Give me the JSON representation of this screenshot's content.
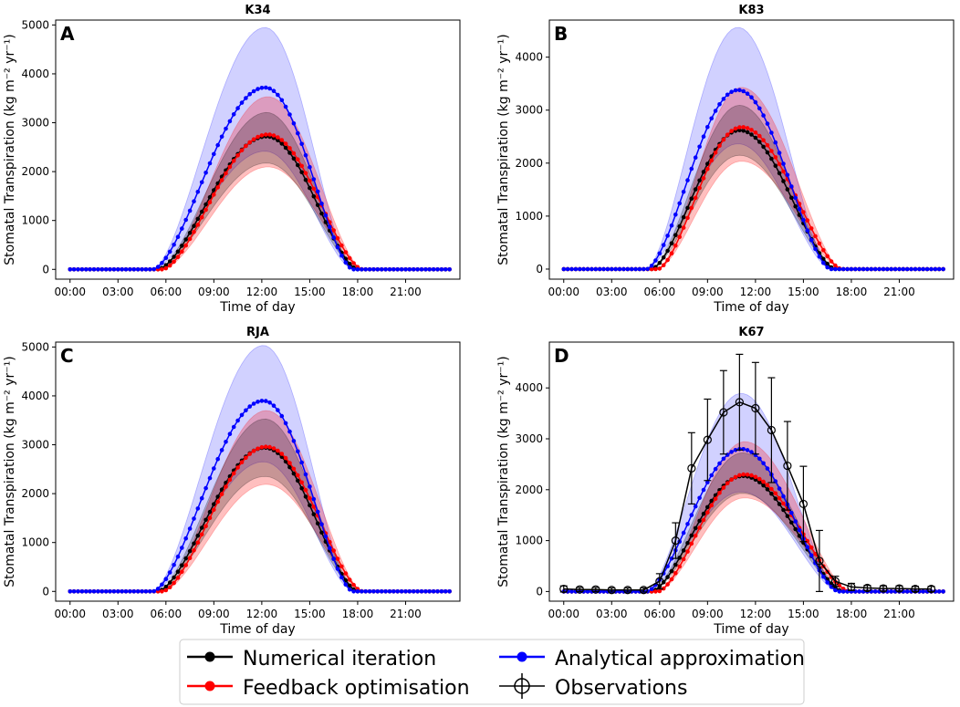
{
  "colors": {
    "numerical": "#000000",
    "feedback": "#ff0000",
    "analytical": "#0000ff",
    "observations": "#000000"
  },
  "legend": {
    "placement": "bottom-center",
    "entries": [
      "Numerical iteration",
      "Feedback optimisation",
      "Analytical approximation",
      "Observations"
    ]
  },
  "chart_data": [
    {
      "type": "line",
      "panel": "A",
      "title": "K34",
      "xlabel": "Time of day",
      "ylabel": "Stomatal Transpiration (kg m⁻² yr⁻¹)",
      "x_tick_labels": [
        "00:00",
        "03:00",
        "06:00",
        "09:00",
        "12:00",
        "15:00",
        "18:00",
        "21:00"
      ],
      "xlim": [
        -0.9,
        24.4
      ],
      "ylim": [
        -200,
        5100
      ],
      "yticks": [
        0,
        1000,
        2000,
        3000,
        4000,
        5000
      ],
      "curve": {
        "start": 5.5,
        "end": 18.0,
        "peak_time": 12.3
      },
      "series": [
        {
          "name": "Numerical iteration",
          "peak": 2720,
          "shift": 0,
          "band_lo": 0.8,
          "band_hi": 1.18
        },
        {
          "name": "Feedback optimisation",
          "peak": 2760,
          "shift": 0.3,
          "band_lo": 0.76,
          "band_hi": 1.28
        },
        {
          "name": "Analytical approximation",
          "peak": 3720,
          "shift": -0.3,
          "band_lo": 0.65,
          "band_hi": 1.33
        }
      ]
    },
    {
      "type": "line",
      "panel": "B",
      "title": "K83",
      "xlabel": "Time of day",
      "ylabel": "Stomatal Transpiration (kg m⁻² yr⁻¹)",
      "x_tick_labels": [
        "00:00",
        "03:00",
        "06:00",
        "09:00",
        "12:00",
        "15:00",
        "18:00",
        "21:00"
      ],
      "xlim": [
        -0.9,
        24.4
      ],
      "ylim": [
        -190,
        4700
      ],
      "yticks": [
        0,
        1000,
        2000,
        3000,
        4000
      ],
      "curve": {
        "start": 5.5,
        "end": 17.0,
        "peak_time": 11.0
      },
      "series": [
        {
          "name": "Numerical iteration",
          "peak": 2620,
          "shift": 0,
          "band_lo": 0.82,
          "band_hi": 1.18
        },
        {
          "name": "Feedback optimisation",
          "peak": 2680,
          "shift": 0.4,
          "band_lo": 0.76,
          "band_hi": 1.28
        },
        {
          "name": "Analytical approximation",
          "peak": 3380,
          "shift": -0.3,
          "band_lo": 0.7,
          "band_hi": 1.35
        }
      ]
    },
    {
      "type": "line",
      "panel": "C",
      "title": "RJA",
      "xlabel": "Time of day",
      "ylabel": "Stomatal Transpiration (kg m⁻² yr⁻¹)",
      "x_tick_labels": [
        "00:00",
        "03:00",
        "06:00",
        "09:00",
        "12:00",
        "15:00",
        "18:00",
        "21:00"
      ],
      "xlim": [
        -0.9,
        24.4
      ],
      "ylim": [
        -200,
        5100
      ],
      "yticks": [
        0,
        1000,
        2000,
        3000,
        4000,
        5000
      ],
      "curve": {
        "start": 5.5,
        "end": 18.0,
        "peak_time": 12.2
      },
      "series": [
        {
          "name": "Numerical iteration",
          "peak": 2940,
          "shift": 0,
          "band_lo": 0.8,
          "band_hi": 1.2
        },
        {
          "name": "Feedback optimisation",
          "peak": 2960,
          "shift": 0.3,
          "band_lo": 0.74,
          "band_hi": 1.25
        },
        {
          "name": "Analytical approximation",
          "peak": 3900,
          "shift": -0.3,
          "band_lo": 0.68,
          "band_hi": 1.29
        }
      ]
    },
    {
      "type": "line",
      "panel": "D",
      "title": "K67",
      "xlabel": "Time of day",
      "ylabel": "Stomatal Transpiration (kg m⁻² yr⁻¹)",
      "x_tick_labels": [
        "00:00",
        "03:00",
        "06:00",
        "09:00",
        "12:00",
        "15:00",
        "18:00",
        "21:00"
      ],
      "xlim": [
        -0.9,
        24.4
      ],
      "ylim": [
        -190,
        4900
      ],
      "yticks": [
        0,
        1000,
        2000,
        3000,
        4000
      ],
      "curve": {
        "start": 5.5,
        "end": 17.5,
        "peak_time": 11.2
      },
      "series": [
        {
          "name": "Numerical iteration",
          "peak": 2270,
          "shift": 0,
          "band_lo": 0.85,
          "band_hi": 1.2
        },
        {
          "name": "Feedback optimisation",
          "peak": 2300,
          "shift": 0.4,
          "band_lo": 0.8,
          "band_hi": 1.28
        },
        {
          "name": "Analytical approximation",
          "peak": 2800,
          "shift": -0.3,
          "band_lo": 0.7,
          "band_hi": 1.39
        }
      ],
      "observations": {
        "x": [
          0,
          1,
          2,
          3,
          4,
          5,
          6,
          7,
          8,
          9,
          10,
          11,
          12,
          13,
          14,
          15,
          16,
          17,
          18,
          19,
          20,
          21,
          22,
          23
        ],
        "y": [
          50,
          40,
          40,
          30,
          30,
          30,
          200,
          1000,
          2420,
          2980,
          3520,
          3720,
          3600,
          3170,
          2470,
          1720,
          600,
          200,
          90,
          70,
          60,
          60,
          50,
          50
        ],
        "err": [
          60,
          40,
          40,
          40,
          40,
          40,
          150,
          350,
          700,
          800,
          820,
          940,
          900,
          1030,
          870,
          740,
          600,
          100,
          70,
          50,
          50,
          50,
          50,
          50
        ]
      }
    }
  ]
}
